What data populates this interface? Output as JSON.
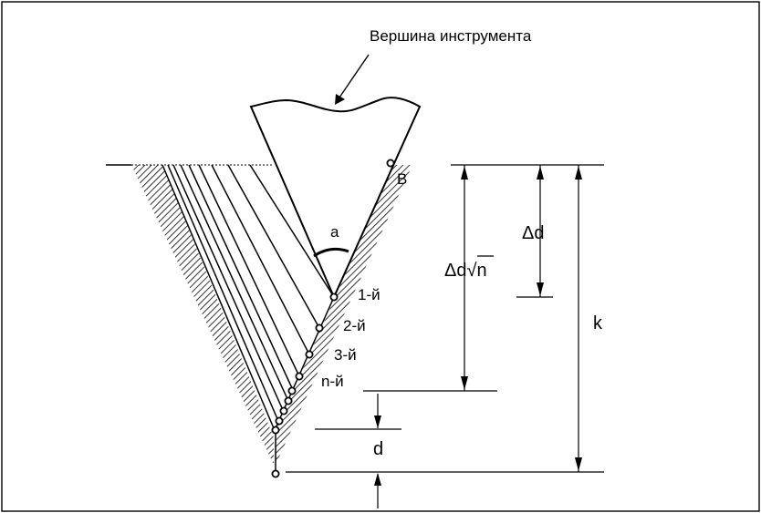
{
  "title": "Вершина   инструмента",
  "labels": {
    "point_b": "В",
    "angle": "a",
    "pass_1": "1-й",
    "pass_2": "2-й",
    "pass_3": "3-й",
    "pass_n": "n-й",
    "delta_d_sqrt_n": "Δd√n",
    "delta_d": "Δd",
    "d": "d",
    "k": "k"
  }
}
